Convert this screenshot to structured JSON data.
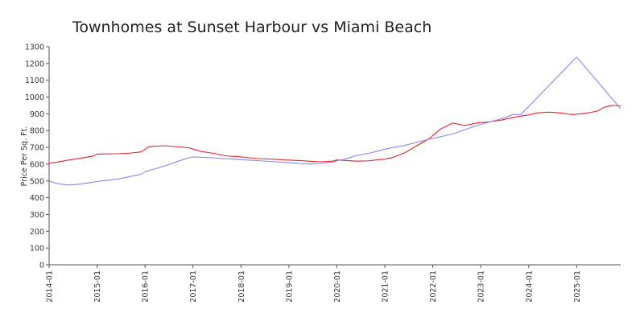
{
  "chart_data": {
    "type": "line",
    "title": "Townhomes at Sunset Harbour vs Miami Beach",
    "xlabel": "",
    "ylabel": "Price Per Sq. Ft.",
    "ylim": [
      0,
      1300
    ],
    "yticks": [
      0,
      100,
      200,
      300,
      400,
      500,
      600,
      700,
      800,
      900,
      1000,
      1100,
      1200,
      1300
    ],
    "xlim": [
      "2014-01",
      "2025-12"
    ],
    "xticks": [
      "2014-01",
      "2015-01",
      "2016-01",
      "2017-01",
      "2018-01",
      "2019-01",
      "2020-01",
      "2021-01",
      "2022-01",
      "2023-01",
      "2024-01",
      "2025-01"
    ],
    "grid": false,
    "legend": "none",
    "series": [
      {
        "color": "#e8202a",
        "points": [
          [
            "2014-01",
            605
          ],
          [
            "2014-03",
            612
          ],
          [
            "2014-06",
            625
          ],
          [
            "2014-09",
            636
          ],
          [
            "2014-12",
            648
          ],
          [
            "2015-01",
            660
          ],
          [
            "2015-06",
            662
          ],
          [
            "2015-09",
            665
          ],
          [
            "2015-12",
            673
          ],
          [
            "2016-02",
            705
          ],
          [
            "2016-06",
            710
          ],
          [
            "2016-09",
            704
          ],
          [
            "2016-12",
            698
          ],
          [
            "2017-01",
            690
          ],
          [
            "2017-03",
            676
          ],
          [
            "2017-06",
            665
          ],
          [
            "2017-09",
            650
          ],
          [
            "2017-12",
            645
          ],
          [
            "2018-03",
            638
          ],
          [
            "2018-06",
            632
          ],
          [
            "2018-09",
            630
          ],
          [
            "2018-12",
            625
          ],
          [
            "2019-03",
            622
          ],
          [
            "2019-06",
            618
          ],
          [
            "2019-09",
            614
          ],
          [
            "2019-12",
            618
          ],
          [
            "2020-01",
            625
          ],
          [
            "2020-03",
            622
          ],
          [
            "2020-06",
            618
          ],
          [
            "2020-09",
            620
          ],
          [
            "2020-12",
            628
          ],
          [
            "2021-01",
            630
          ],
          [
            "2021-03",
            640
          ],
          [
            "2021-06",
            668
          ],
          [
            "2021-09",
            710
          ],
          [
            "2021-12",
            750
          ],
          [
            "2022-01",
            770
          ],
          [
            "2022-03",
            810
          ],
          [
            "2022-06",
            845
          ],
          [
            "2022-09",
            830
          ],
          [
            "2022-12",
            845
          ],
          [
            "2023-01",
            848
          ],
          [
            "2023-03",
            852
          ],
          [
            "2023-06",
            862
          ],
          [
            "2023-09",
            878
          ],
          [
            "2023-12",
            890
          ],
          [
            "2024-01",
            893
          ],
          [
            "2024-03",
            905
          ],
          [
            "2024-06",
            910
          ],
          [
            "2024-09",
            905
          ],
          [
            "2024-12",
            895
          ],
          [
            "2025-01",
            898
          ],
          [
            "2025-03",
            902
          ],
          [
            "2025-06",
            915
          ],
          [
            "2025-08",
            940
          ],
          [
            "2025-10",
            950
          ],
          [
            "2025-12",
            948
          ]
        ]
      },
      {
        "color": "#8888ee",
        "points": [
          [
            "2014-01",
            500
          ],
          [
            "2014-03",
            484
          ],
          [
            "2014-06",
            475
          ],
          [
            "2014-09",
            482
          ],
          [
            "2014-12",
            493
          ],
          [
            "2015-01",
            497
          ],
          [
            "2015-06",
            510
          ],
          [
            "2015-12",
            540
          ],
          [
            "2016-01",
            555
          ],
          [
            "2016-06",
            590
          ],
          [
            "2016-09",
            615
          ],
          [
            "2016-12",
            638
          ],
          [
            "2017-01",
            643
          ],
          [
            "2017-06",
            638
          ],
          [
            "2017-12",
            628
          ],
          [
            "2018-06",
            620
          ],
          [
            "2018-12",
            610
          ],
          [
            "2019-06",
            600
          ],
          [
            "2019-09",
            605
          ],
          [
            "2019-12",
            612
          ],
          [
            "2020-01",
            620
          ],
          [
            "2020-03",
            630
          ],
          [
            "2020-06",
            652
          ],
          [
            "2020-09",
            665
          ],
          [
            "2020-12",
            682
          ],
          [
            "2021-01",
            690
          ],
          [
            "2021-06",
            712
          ],
          [
            "2021-12",
            748
          ],
          [
            "2022-06",
            780
          ],
          [
            "2022-12",
            830
          ],
          [
            "2023-06",
            870
          ],
          [
            "2023-09",
            895
          ],
          [
            "2023-11",
            895
          ],
          [
            "2025-01",
            1238
          ],
          [
            "2025-12",
            930
          ]
        ]
      }
    ]
  }
}
